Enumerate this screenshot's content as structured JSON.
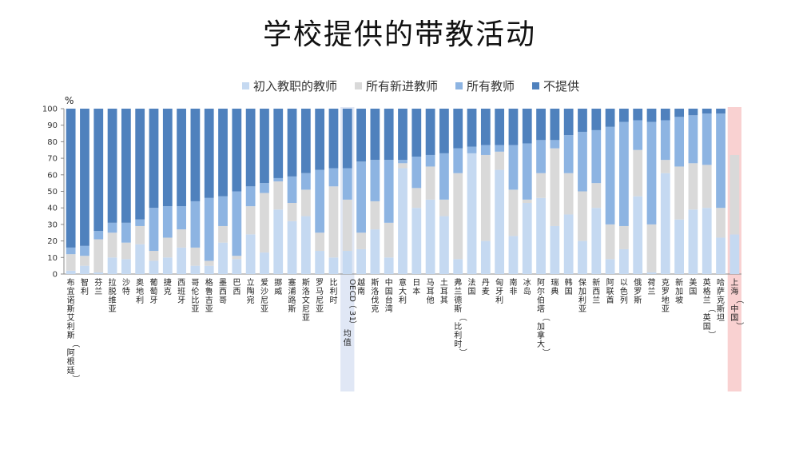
{
  "chart_data": {
    "type": "bar",
    "stacked": true,
    "title": "学校提供的带教活动",
    "ylabel": "%",
    "ylim": [
      0,
      100
    ],
    "yticks": [
      0,
      10,
      20,
      30,
      40,
      50,
      60,
      70,
      80,
      90,
      100
    ],
    "grid": false,
    "legend_position": "top",
    "categories": [
      "布宜诺斯艾利斯（阿根廷）",
      "智利",
      "芬兰",
      "拉脱维亚",
      "沙特",
      "奥地利",
      "葡萄牙",
      "捷克",
      "西班牙",
      "哥伦比亚",
      "格鲁吉亚",
      "墨西哥",
      "巴西",
      "立陶宛",
      "爱沙尼亚",
      "挪威",
      "塞浦路斯",
      "斯洛文尼亚",
      "罗马尼亚",
      "比利时",
      "OECD（31）均值",
      "越南",
      "斯洛伐克",
      "中国台湾",
      "意大利",
      "日本",
      "马耳他",
      "土耳其",
      "弗兰德斯（比利时）",
      "法国",
      "丹麦",
      "匈牙利",
      "南非",
      "冰岛",
      "阿尔伯塔（加拿大）",
      "瑞典",
      "韩国",
      "保加利亚",
      "新西兰",
      "阿联酋",
      "以色列",
      "俄罗斯",
      "荷兰",
      "克罗地亚",
      "新加坡",
      "美国",
      "英格兰（英国）",
      "哈萨克斯坦",
      "上海（中国）"
    ],
    "series": [
      {
        "name": "初入教职的教师",
        "color": "#c5d9f1",
        "values": [
          2,
          5,
          1,
          10,
          9,
          18,
          8,
          10,
          16,
          5,
          5,
          19,
          9,
          24,
          13,
          39,
          32,
          35,
          14,
          10,
          14,
          15,
          27,
          10,
          64,
          40,
          45,
          35,
          9,
          73,
          20,
          63,
          23,
          43,
          46,
          29,
          36,
          20,
          40,
          9,
          15,
          47,
          1,
          61,
          33,
          39,
          40,
          22,
          24
        ]
      },
      {
        "name": "所有新进教师",
        "color": "#d9d9d9",
        "values": [
          10,
          6,
          20,
          15,
          10,
          11,
          6,
          12,
          11,
          11,
          3,
          10,
          2,
          17,
          36,
          17,
          11,
          16,
          11,
          43,
          31,
          10,
          17,
          21,
          3,
          12,
          20,
          10,
          52,
          0,
          52,
          11,
          28,
          2,
          15,
          47,
          25,
          30,
          15,
          21,
          14,
          28,
          29,
          8,
          32,
          28,
          26,
          18,
          48
        ]
      },
      {
        "name": "所有教师",
        "color": "#8db4e2",
        "values": [
          4,
          6,
          5,
          6,
          12,
          4,
          26,
          19,
          14,
          28,
          38,
          18,
          39,
          12,
          6,
          2,
          16,
          10,
          38,
          11,
          19,
          43,
          25,
          38,
          2,
          19,
          7,
          28,
          15,
          4,
          6,
          4,
          27,
          34,
          20,
          5,
          23,
          36,
          32,
          59,
          63,
          18,
          62,
          24,
          30,
          29,
          31,
          57,
          0
        ]
      },
      {
        "name": "不提供",
        "color": "#4f81bd",
        "values": [
          84,
          83,
          74,
          69,
          69,
          67,
          60,
          59,
          59,
          56,
          54,
          53,
          50,
          47,
          45,
          42,
          41,
          39,
          37,
          36,
          36,
          32,
          31,
          31,
          31,
          29,
          28,
          27,
          24,
          23,
          22,
          22,
          22,
          21,
          19,
          19,
          16,
          14,
          13,
          11,
          8,
          7,
          8,
          7,
          5,
          4,
          3,
          3,
          0
        ]
      }
    ],
    "highlight_categories": [
      {
        "category": "OECD（31）均值",
        "color": "#dae3f3"
      },
      {
        "category": "上海（中国）",
        "color": "#f8c9c9"
      }
    ]
  }
}
